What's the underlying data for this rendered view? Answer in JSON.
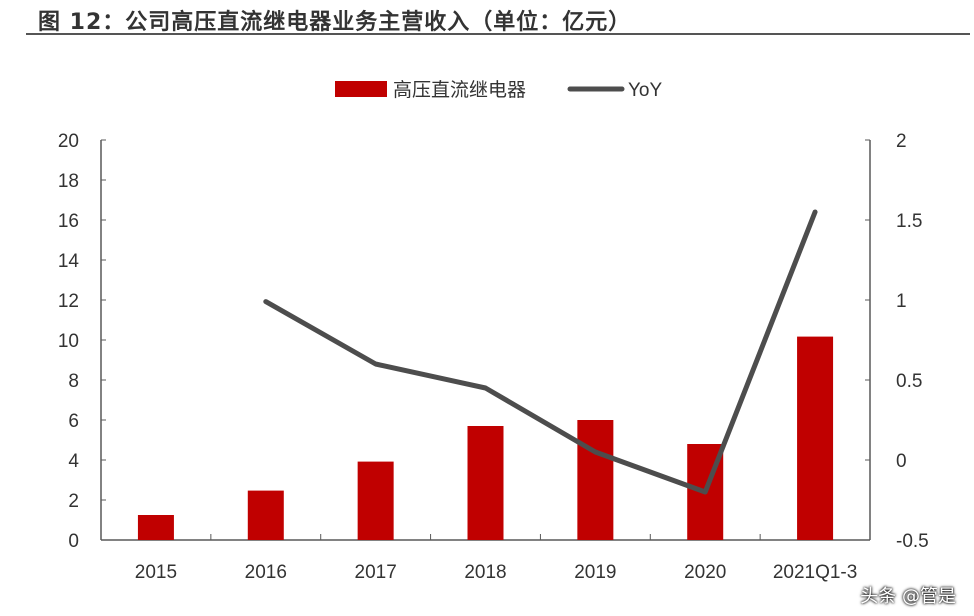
{
  "title": "图 12：公司高压直流继电器业务主营收入（单位：亿元）",
  "watermark": "头条 @管是",
  "chart_data": {
    "type": "bar+line",
    "categories": [
      "2015",
      "2016",
      "2017",
      "2018",
      "2019",
      "2020",
      "2021Q1-3"
    ],
    "series": [
      {
        "name": "高压直流继电器",
        "type": "bar",
        "axis": "left",
        "color": "#C00000",
        "values": [
          1.25,
          2.47,
          3.92,
          5.7,
          6.0,
          4.8,
          10.17
        ]
      },
      {
        "name": "YoY",
        "type": "line",
        "axis": "right",
        "color": "#4D4D4D",
        "values": [
          null,
          0.99,
          0.6,
          0.45,
          0.05,
          -0.2,
          1.55
        ]
      }
    ],
    "y_left": {
      "range": [
        0,
        20
      ],
      "ticks": [
        "0",
        "2",
        "4",
        "6",
        "8",
        "10",
        "12",
        "14",
        "16",
        "18",
        "20"
      ]
    },
    "y_right": {
      "range": [
        -0.5,
        2
      ],
      "ticks": [
        "-0.5",
        "0",
        "0.5",
        "1",
        "1.5",
        "2"
      ]
    },
    "legend": "top-center",
    "grid": false
  }
}
